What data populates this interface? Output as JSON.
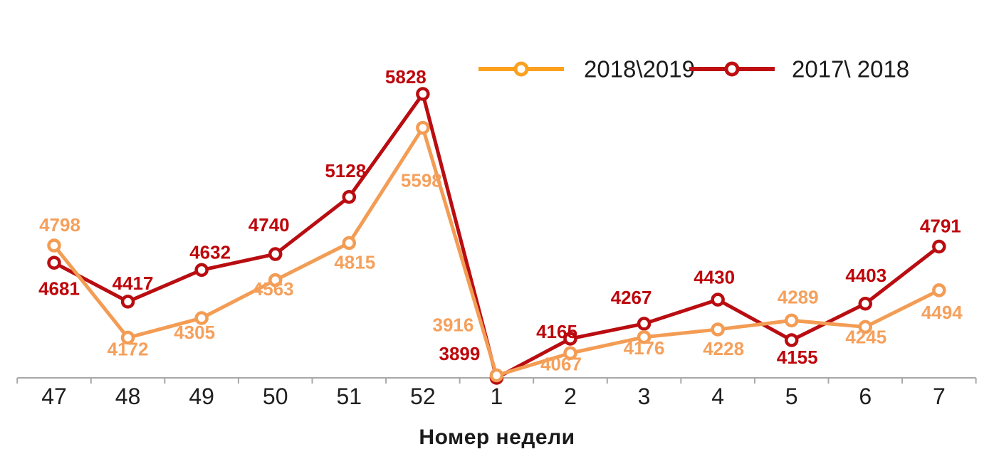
{
  "chart_data": {
    "type": "line",
    "categories": [
      "47",
      "48",
      "49",
      "50",
      "51",
      "52",
      "1",
      "2",
      "3",
      "4",
      "5",
      "6",
      "7"
    ],
    "xlabel": "Номер недели",
    "ylim": [
      3899,
      5828
    ],
    "grid": false,
    "legend_position": "top-center",
    "axis_line_color": "#a8a8a8",
    "tick_label_color": "#1f1f1f",
    "legend_text_color": "#1a1a1a",
    "series": [
      {
        "name": "2018\\2019",
        "line_color": "#F39C54",
        "label_color": "#F5A05C",
        "legend_swatch_color": "#FBA01F",
        "values": [
          4798,
          4172,
          4305,
          4563,
          4815,
          5598,
          3916,
          4067,
          4176,
          4228,
          4289,
          4245,
          4494
        ],
        "label_offsets": [
          [
            8,
            -29
          ],
          [
            0,
            16
          ],
          [
            -10,
            20
          ],
          [
            -3,
            12
          ],
          [
            8,
            27
          ],
          [
            -2,
            74
          ],
          [
            -61,
            -71
          ],
          [
            -13,
            15
          ],
          [
            0,
            15
          ],
          [
            8,
            27
          ],
          [
            9,
            -33
          ],
          [
            1,
            14
          ],
          [
            4,
            31
          ]
        ]
      },
      {
        "name": "2017\\ 2018",
        "line_color": "#B90D11",
        "label_color": "#BE060B",
        "legend_swatch_color": "#BE0E11",
        "values": [
          4681,
          4417,
          4632,
          4740,
          5128,
          5828,
          3899,
          4165,
          4267,
          4430,
          4155,
          4403,
          4791
        ],
        "label_offsets": [
          [
            7,
            36
          ],
          [
            7,
            -26
          ],
          [
            12,
            -25
          ],
          [
            -9,
            -41
          ],
          [
            -5,
            -37
          ],
          [
            -24,
            -24
          ],
          [
            -52,
            -34
          ],
          [
            -19,
            -10
          ],
          [
            -18,
            -37
          ],
          [
            -5,
            -32
          ],
          [
            8,
            24
          ],
          [
            1,
            -40
          ],
          [
            2,
            -29
          ]
        ]
      }
    ]
  }
}
